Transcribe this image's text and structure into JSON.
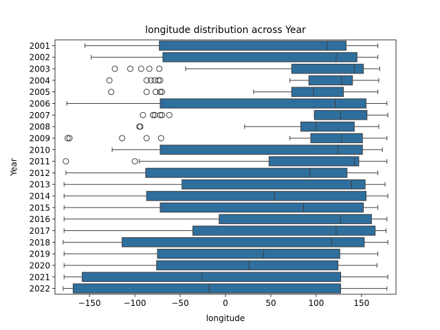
{
  "chart_data": {
    "type": "boxplot",
    "orientation": "horizontal",
    "title": "longitude distribution across Year",
    "xlabel": "longitude",
    "ylabel": "Year",
    "xlim": [
      -188,
      188
    ],
    "xticks": [
      -150,
      -100,
      -50,
      0,
      50,
      100,
      150
    ],
    "xtick_labels": [
      "−150",
      "−100",
      "−50",
      "0",
      "50",
      "100",
      "150"
    ],
    "box_color": "#2e6f9e",
    "line_color": "#3d3d3d",
    "grid": false,
    "categories": [
      "2001",
      "2002",
      "2003",
      "2004",
      "2005",
      "2006",
      "2007",
      "2008",
      "2009",
      "2010",
      "2011",
      "2012",
      "2013",
      "2014",
      "2015",
      "2016",
      "2017",
      "2018",
      "2019",
      "2020",
      "2021",
      "2022"
    ],
    "boxes": [
      {
        "year": "2001",
        "whisker_low": -155,
        "q1": -73,
        "median": 112,
        "q3": 133,
        "whisker_high": 168,
        "outliers": []
      },
      {
        "year": "2002",
        "whisker_low": -148,
        "q1": -69,
        "median": 122,
        "q3": 145,
        "whisker_high": 168,
        "outliers": []
      },
      {
        "year": "2003",
        "whisker_low": -44,
        "q1": 73,
        "median": 142,
        "q3": 152,
        "whisker_high": 170,
        "outliers": [
          -122,
          -105,
          -93,
          -84,
          -73
        ]
      },
      {
        "year": "2004",
        "whisker_low": 71,
        "q1": 92,
        "median": 128,
        "q3": 140,
        "whisker_high": 169,
        "outliers": [
          -128,
          -87,
          -82,
          -78,
          -74,
          -72
        ]
      },
      {
        "year": "2005",
        "whisker_low": 31,
        "q1": 73,
        "median": 97,
        "q3": 130,
        "whisker_high": 168,
        "outliers": [
          -126,
          -87,
          -77,
          -72,
          -70
        ]
      },
      {
        "year": "2006",
        "whisker_low": -175,
        "q1": -72,
        "median": 121,
        "q3": 155,
        "whisker_high": 178,
        "outliers": []
      },
      {
        "year": "2007",
        "whisker_low": 98,
        "q1": 98,
        "median": 127,
        "q3": 156,
        "whisker_high": 179,
        "outliers": [
          -91,
          -80,
          -78,
          -72,
          -70,
          -62
        ]
      },
      {
        "year": "2008",
        "whisker_low": 21,
        "q1": 83,
        "median": 100,
        "q3": 142,
        "whisker_high": 169,
        "outliers": [
          -95,
          -94
        ]
      },
      {
        "year": "2009",
        "whisker_low": 71,
        "q1": 94,
        "median": 128,
        "q3": 151,
        "whisker_high": 178,
        "outliers": [
          -174,
          -172,
          -114,
          -87,
          -71
        ]
      },
      {
        "year": "2010",
        "whisker_low": -125,
        "q1": -72,
        "median": 124,
        "q3": 151,
        "whisker_high": 173,
        "outliers": []
      },
      {
        "year": "2011",
        "whisker_low": -95,
        "q1": 48,
        "median": 142,
        "q3": 147,
        "whisker_high": 178,
        "outliers": [
          -176,
          -100
        ]
      },
      {
        "year": "2012",
        "whisker_low": -176,
        "q1": -88,
        "median": 93,
        "q3": 134,
        "whisker_high": 168,
        "outliers": []
      },
      {
        "year": "2013",
        "whisker_low": -178,
        "q1": -48,
        "median": 139,
        "q3": 154,
        "whisker_high": 176,
        "outliers": []
      },
      {
        "year": "2014",
        "whisker_low": -178,
        "q1": -87,
        "median": 54,
        "q3": 155,
        "whisker_high": 179,
        "outliers": []
      },
      {
        "year": "2015",
        "whisker_low": -178,
        "q1": -72,
        "median": 86,
        "q3": 152,
        "whisker_high": 168,
        "outliers": []
      },
      {
        "year": "2016",
        "whisker_low": -178,
        "q1": -7,
        "median": 127,
        "q3": 161,
        "whisker_high": 178,
        "outliers": []
      },
      {
        "year": "2017",
        "whisker_low": -178,
        "q1": -36,
        "median": 122,
        "q3": 165,
        "whisker_high": 177,
        "outliers": []
      },
      {
        "year": "2018",
        "whisker_low": -179,
        "q1": -114,
        "median": 117,
        "q3": 153,
        "whisker_high": 179,
        "outliers": []
      },
      {
        "year": "2019",
        "whisker_low": -178,
        "q1": -75,
        "median": 42,
        "q3": 126,
        "whisker_high": 168,
        "outliers": []
      },
      {
        "year": "2020",
        "whisker_low": -178,
        "q1": -76,
        "median": 26,
        "q3": 124,
        "whisker_high": 167,
        "outliers": []
      },
      {
        "year": "2021",
        "whisker_low": -178,
        "q1": -158,
        "median": -26,
        "q3": 127,
        "whisker_high": 179,
        "outliers": []
      },
      {
        "year": "2022",
        "whisker_low": -179,
        "q1": -168,
        "median": -18,
        "q3": 127,
        "whisker_high": 178,
        "outliers": []
      }
    ]
  }
}
